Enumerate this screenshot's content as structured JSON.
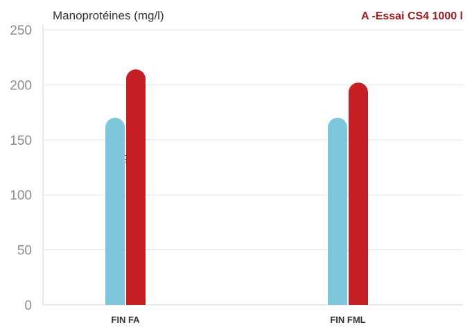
{
  "chart_data": {
    "type": "bar",
    "title": "A -Essai CS4 1000 l",
    "ylabel": "Manoprotéines (mg/l)",
    "xlabel": "",
    "categories": [
      "FIN FA",
      "FIN FML"
    ],
    "series": [
      {
        "values": [
          170,
          170
        ],
        "color": "#7ec6dc"
      },
      {
        "values": [
          214,
          202
        ],
        "color": "#c42026"
      }
    ],
    "ylim": [
      0,
      250
    ],
    "yticks": [
      0,
      50,
      100,
      150,
      200,
      250
    ],
    "grid": true,
    "legend": "none",
    "annotations": [
      {
        "text": "3%",
        "category": "FIN FA"
      }
    ],
    "title_color": "#9b1b1f"
  }
}
